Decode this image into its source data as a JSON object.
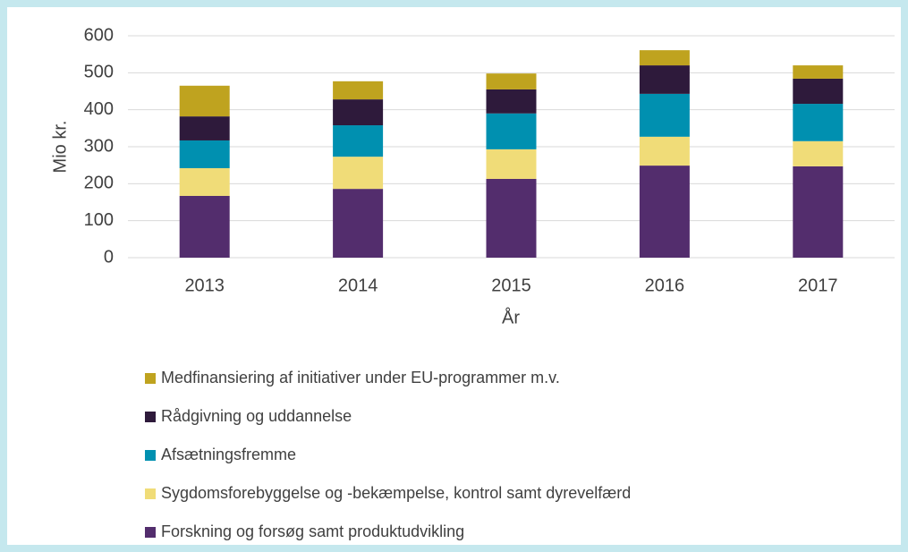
{
  "chart_data": {
    "type": "stacked_bar",
    "x_label": "År",
    "y_label": "Mio kr.",
    "categories": [
      "2013",
      "2014",
      "2015",
      "2016",
      "2017"
    ],
    "series": [
      {
        "name": "Forskning og forsøg samt produktudvikling",
        "color": "#532d6d",
        "values": [
          167,
          186,
          213,
          249,
          247
        ]
      },
      {
        "name": "Sygdomsforebyggelse og -bekæmpelse, kontrol samt dyrevelfærd",
        "color": "#f0dc78",
        "values": [
          75,
          87,
          80,
          78,
          68
        ]
      },
      {
        "name": "Afsætningsfremme",
        "color": "#0090b0",
        "values": [
          75,
          85,
          97,
          116,
          101
        ]
      },
      {
        "name": "Rådgivning og uddannelse",
        "color": "#2e1a3b",
        "values": [
          65,
          70,
          65,
          77,
          68
        ]
      },
      {
        "name": "Medfinansiering af initiativer under EU-programmer m.v.",
        "color": "#bfa31f",
        "values": [
          83,
          49,
          43,
          41,
          36
        ]
      }
    ],
    "ylim": [
      0,
      600
    ],
    "yticks": [
      0,
      100,
      200,
      300,
      400,
      500,
      600
    ],
    "grid": true
  }
}
